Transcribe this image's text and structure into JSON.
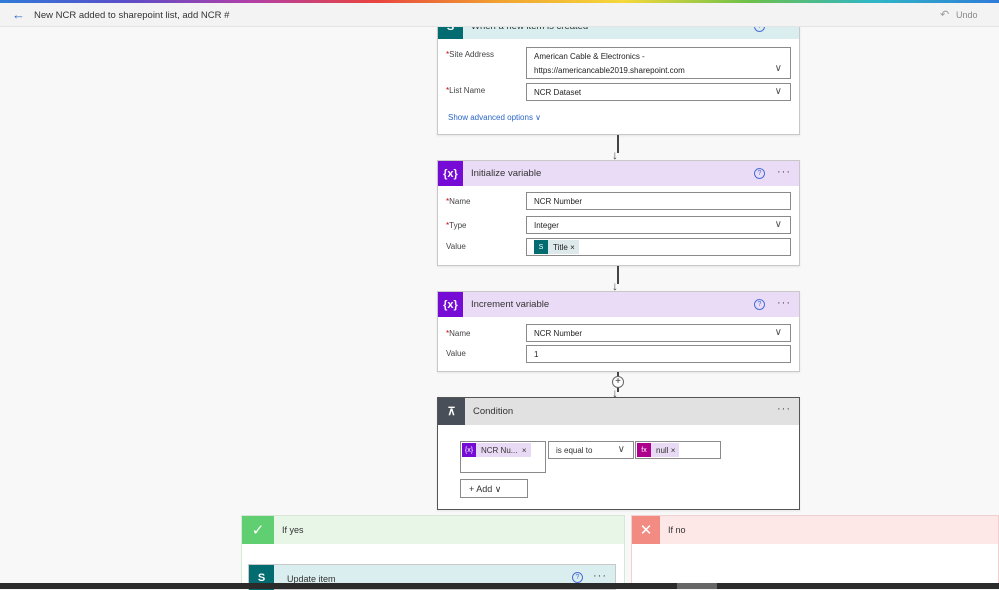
{
  "header": {
    "title": "New NCR added to sharepoint list, add NCR #",
    "undo": "Undo"
  },
  "trigger": {
    "title": "When a new item is created",
    "icon": "sharepoint-icon",
    "color": "#036c70",
    "site_label": "Site Address",
    "site_line1": "American Cable & Electronics -",
    "site_line2": "https://americancable2019.sharepoint.com",
    "list_label": "List Name",
    "list_value": "NCR Dataset",
    "advanced": "Show advanced options"
  },
  "init": {
    "title": "Initialize variable",
    "icon": "variable-icon",
    "color": "#770bd6",
    "name_label": "Name",
    "name_value": "NCR Number",
    "type_label": "Type",
    "type_value": "Integer",
    "value_label": "Value",
    "token": "Title"
  },
  "increment": {
    "title": "Increment variable",
    "name_label": "Name",
    "name_value": "NCR Number",
    "value_label": "Value",
    "value": "1"
  },
  "condition": {
    "title": "Condition",
    "icon": "condition-icon",
    "left_token": "NCR Nu...",
    "operator": "is equal to",
    "right_token": "null",
    "add": "Add"
  },
  "if_yes": {
    "label": "If yes",
    "color": "#5fcf71"
  },
  "if_no": {
    "label": "If no",
    "color": "#f28b82"
  },
  "update": {
    "title": "Update item"
  }
}
